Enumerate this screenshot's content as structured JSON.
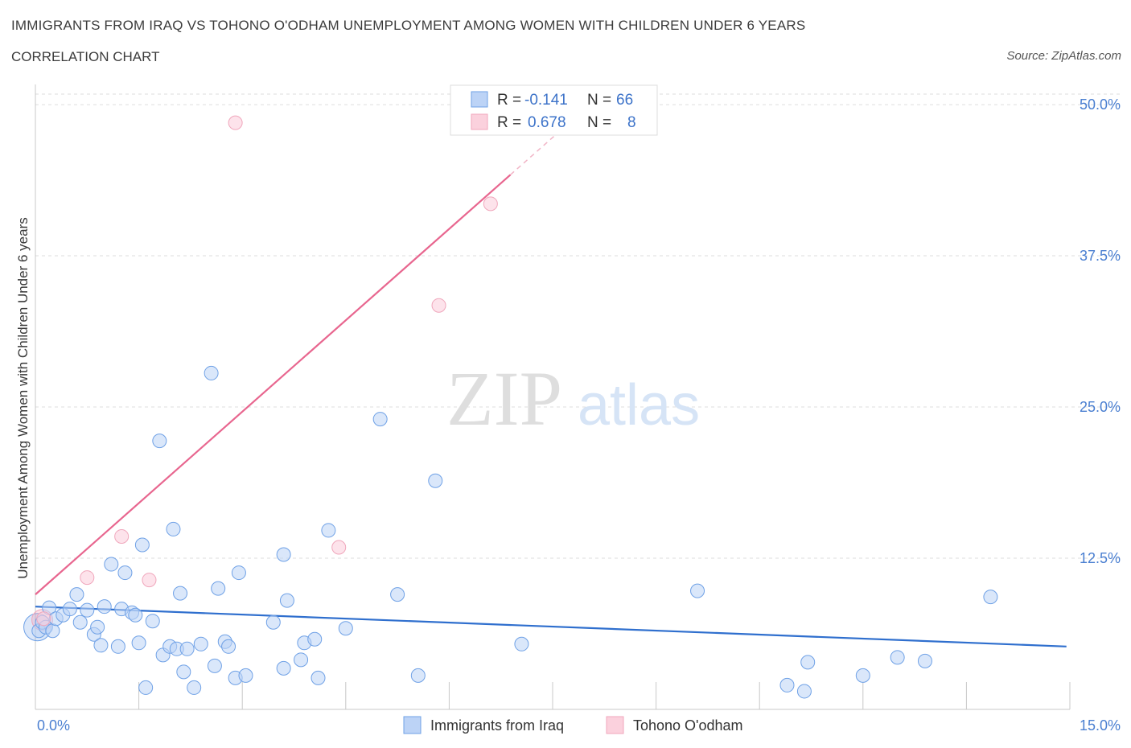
{
  "title": "IMMIGRANTS FROM IRAQ VS TOHONO O'ODHAM UNEMPLOYMENT AMONG WOMEN WITH CHILDREN UNDER 6 YEARS",
  "subtitle": "CORRELATION CHART",
  "source": "Source: ZipAtlas.com",
  "watermark": {
    "zip": "ZIP",
    "atlas": "atlas"
  },
  "colors": {
    "blue": "#6fa1e6",
    "blue_line": "#2f6fce",
    "pink": "#f0a7bc",
    "pink_line": "#e8668f",
    "tick": "#4a7fd1"
  },
  "legend": {
    "rows": [
      {
        "r_label": "R =",
        "r_value": "-0.141",
        "n_label": "N =",
        "n_value": "66"
      },
      {
        "r_label": "R =",
        "r_value": "0.678",
        "n_label": "N =",
        "n_value": "8"
      }
    ]
  },
  "chart_data": {
    "type": "scatter",
    "title": "IMMIGRANTS FROM IRAQ VS TOHONO O'ODHAM UNEMPLOYMENT AMONG WOMEN WITH CHILDREN UNDER 6 YEARS",
    "ylabel": "Unemployment Among Women with Children Under 6 years",
    "xlim": [
      0,
      15
    ],
    "ylim": [
      0,
      52
    ],
    "x_tick_labels": [
      "0.0%",
      "15.0%"
    ],
    "y_ticks": [
      12.5,
      25.0,
      37.5,
      50.0
    ],
    "y_tick_labels": [
      "12.5%",
      "25.0%",
      "37.5%",
      "50.0%"
    ],
    "grid": true,
    "legend_position": "bottom",
    "series": [
      {
        "name": "Immigrants from Iraq",
        "color": "#6fa1e6",
        "trend": {
          "x": [
            0,
            14.95
          ],
          "y": [
            8.5,
            5.2
          ]
        },
        "points": [
          [
            0.05,
            6.5
          ],
          [
            0.1,
            7.2
          ],
          [
            0.15,
            6.8
          ],
          [
            0.2,
            8.4
          ],
          [
            0.25,
            6.5
          ],
          [
            0.3,
            7.5
          ],
          [
            0.4,
            7.8
          ],
          [
            0.5,
            8.3
          ],
          [
            0.6,
            9.5
          ],
          [
            0.65,
            7.2
          ],
          [
            0.75,
            8.2
          ],
          [
            0.85,
            6.2
          ],
          [
            0.9,
            6.8
          ],
          [
            0.95,
            5.3
          ],
          [
            1.0,
            8.5
          ],
          [
            1.1,
            12.0
          ],
          [
            1.2,
            5.2
          ],
          [
            1.25,
            8.3
          ],
          [
            1.3,
            11.3
          ],
          [
            1.4,
            8.0
          ],
          [
            1.45,
            7.8
          ],
          [
            1.5,
            5.5
          ],
          [
            1.55,
            13.6
          ],
          [
            1.6,
            1.8
          ],
          [
            1.7,
            7.3
          ],
          [
            1.8,
            22.2
          ],
          [
            1.85,
            4.5
          ],
          [
            1.95,
            5.2
          ],
          [
            2.0,
            14.9
          ],
          [
            2.05,
            5.0
          ],
          [
            2.1,
            9.6
          ],
          [
            2.15,
            3.1
          ],
          [
            2.2,
            5.0
          ],
          [
            2.3,
            1.8
          ],
          [
            2.4,
            5.4
          ],
          [
            2.55,
            27.8
          ],
          [
            2.6,
            3.6
          ],
          [
            2.65,
            10.0
          ],
          [
            2.75,
            5.6
          ],
          [
            2.8,
            5.2
          ],
          [
            2.9,
            2.6
          ],
          [
            2.95,
            11.3
          ],
          [
            3.05,
            2.8
          ],
          [
            3.45,
            7.2
          ],
          [
            3.6,
            3.4
          ],
          [
            3.6,
            12.8
          ],
          [
            3.65,
            9.0
          ],
          [
            3.85,
            4.1
          ],
          [
            3.9,
            5.5
          ],
          [
            4.05,
            5.8
          ],
          [
            4.1,
            2.6
          ],
          [
            4.25,
            14.8
          ],
          [
            4.5,
            6.7
          ],
          [
            5.0,
            24.0
          ],
          [
            5.25,
            9.5
          ],
          [
            5.55,
            2.8
          ],
          [
            5.8,
            18.9
          ],
          [
            7.05,
            5.4
          ],
          [
            9.6,
            9.8
          ],
          [
            10.9,
            2.0
          ],
          [
            11.15,
            1.5
          ],
          [
            11.2,
            3.9
          ],
          [
            12.0,
            2.8
          ],
          [
            12.5,
            4.3
          ],
          [
            12.9,
            4.0
          ],
          [
            13.85,
            9.3
          ]
        ]
      },
      {
        "name": "Tohono O'odham",
        "color": "#f0a7bc",
        "trend": {
          "x": [
            0,
            8.0
          ],
          "y": [
            9.5,
            49.8
          ]
        },
        "points": [
          [
            0.12,
            7.5
          ],
          [
            0.75,
            10.9
          ],
          [
            1.25,
            14.3
          ],
          [
            1.65,
            10.7
          ],
          [
            2.9,
            48.5
          ],
          [
            4.4,
            13.4
          ],
          [
            5.85,
            33.4
          ],
          [
            6.6,
            41.8
          ]
        ]
      }
    ]
  }
}
